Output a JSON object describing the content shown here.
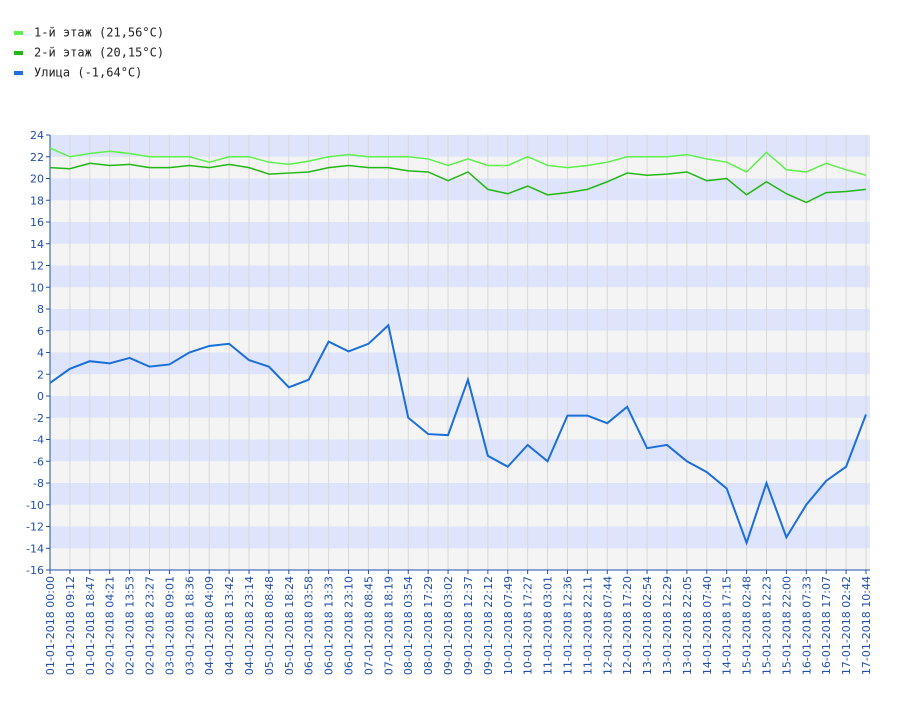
{
  "chart_data": {
    "type": "line",
    "categories": [
      "01-01-2018 00:00",
      "01-01-2018 09:12",
      "01-01-2018 18:47",
      "02-01-2018 04:21",
      "02-01-2018 13:53",
      "02-01-2018 23:27",
      "03-01-2018 09:01",
      "03-01-2018 18:36",
      "04-01-2018 04:09",
      "04-01-2018 13:42",
      "04-01-2018 23:14",
      "05-01-2018 08:48",
      "05-01-2018 18:24",
      "06-01-2018 03:58",
      "06-01-2018 13:33",
      "06-01-2018 23:10",
      "07-01-2018 08:45",
      "07-01-2018 18:19",
      "08-01-2018 03:54",
      "08-01-2018 17:29",
      "09-01-2018 03:02",
      "09-01-2018 12:37",
      "09-01-2018 22:12",
      "10-01-2018 07:49",
      "10-01-2018 17:27",
      "11-01-2018 03:01",
      "11-01-2018 12:36",
      "11-01-2018 22:11",
      "12-01-2018 07:44",
      "12-01-2018 17:20",
      "13-01-2018 02:54",
      "13-01-2018 12:29",
      "13-01-2018 22:05",
      "14-01-2018 07:40",
      "14-01-2018 17:15",
      "15-01-2018 02:48",
      "15-01-2018 12:23",
      "15-01-2018 22:00",
      "16-01-2018 07:33",
      "16-01-2018 17:07",
      "17-01-2018 02:42",
      "17-01-2018 10:44"
    ],
    "series": [
      {
        "name": "1-й этаж (21,56°C)",
        "color": "#5cf24a",
        "values": [
          22.8,
          22.0,
          22.3,
          22.5,
          22.3,
          22.0,
          22.0,
          22.0,
          21.5,
          22.0,
          22.0,
          21.5,
          21.3,
          21.6,
          22.0,
          22.2,
          22.0,
          22.0,
          22.0,
          21.8,
          21.2,
          21.8,
          21.2,
          21.2,
          22.0,
          21.2,
          21.0,
          21.2,
          21.5,
          22.0,
          22.0,
          22.0,
          22.2,
          21.8,
          21.5,
          20.6,
          22.4,
          20.8,
          20.6,
          21.4,
          20.8,
          20.3
        ]
      },
      {
        "name": "2-й этаж (20,15°C)",
        "color": "#22b814",
        "values": [
          21.0,
          20.9,
          21.4,
          21.2,
          21.3,
          21.0,
          21.0,
          21.2,
          21.0,
          21.3,
          21.0,
          20.4,
          20.5,
          20.6,
          21.0,
          21.2,
          21.0,
          21.0,
          20.7,
          20.6,
          19.8,
          20.6,
          19.0,
          18.6,
          19.3,
          18.5,
          18.7,
          19.0,
          19.7,
          20.5,
          20.3,
          20.4,
          20.6,
          19.8,
          20.0,
          18.5,
          19.7,
          18.6,
          17.8,
          18.7,
          18.8,
          19.0
        ]
      },
      {
        "name": "Улица (-1,64°C)",
        "color": "#1a6fdb",
        "values": [
          1.2,
          2.5,
          3.2,
          3.0,
          3.5,
          2.7,
          2.9,
          4.0,
          4.6,
          4.8,
          3.3,
          2.7,
          0.8,
          1.5,
          5.0,
          4.1,
          4.8,
          6.5,
          -2.0,
          -3.5,
          -3.6,
          1.5,
          -5.5,
          -6.5,
          -4.5,
          -6.0,
          -1.8,
          -1.8,
          -2.5,
          -1.0,
          -4.8,
          -4.5,
          -6.0,
          -7.0,
          -8.5,
          -13.5,
          -8.0,
          -13.0,
          -10.0,
          -7.8,
          -6.5,
          -1.7
        ]
      }
    ],
    "ylim": [
      -16,
      24
    ],
    "yticks": [
      -16,
      -14,
      -12,
      -10,
      -8,
      -6,
      -4,
      -2,
      0,
      2,
      4,
      6,
      8,
      10,
      12,
      14,
      16,
      18,
      20,
      22,
      24
    ],
    "grid": true,
    "band_colors": [
      "#f4f4f4",
      "#dde4fb"
    ],
    "legend": "top-left"
  }
}
